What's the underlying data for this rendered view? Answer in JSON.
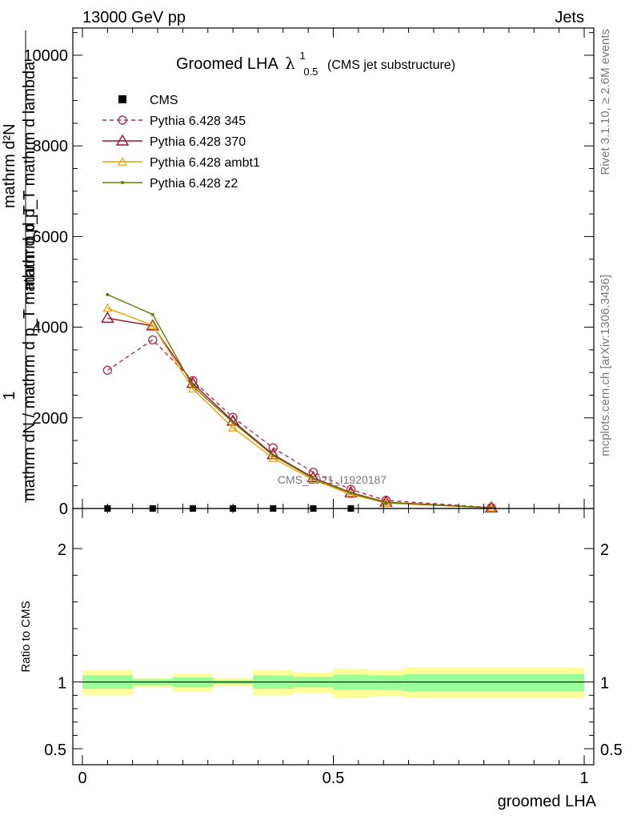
{
  "header": {
    "left": "13000 GeV pp",
    "right": "Jets"
  },
  "side": {
    "rivet": "Rivet 3.1.10, ≥ 2.6M events",
    "mcplots": "mcplots.cern.ch [arXiv:1306.3436]"
  },
  "watermark": "CMS_2021_I1920187",
  "chart_data": [
    {
      "type": "line",
      "title": {
        "main": "Groomed LHA",
        "symbol": "λ",
        "sup": "1",
        "sub": "0.5",
        "suffix": "(CMS jet substructure)"
      },
      "ylabel": {
        "numerator_top": "mathrm d²N",
        "numerator_sub": "mathrm d p_T mathrm d lambda",
        "one": "1",
        "denominator": "mathrm dN / mathrm d p_T mathrm d p_T"
      },
      "xlim": [
        0,
        1
      ],
      "ylim": [
        0,
        10600
      ],
      "yticks": [
        {
          "value": 0,
          "label": "0"
        },
        {
          "value": 2000,
          "label": "2000"
        },
        {
          "value": 4000,
          "label": "4000"
        },
        {
          "value": 6000,
          "label": "6000"
        },
        {
          "value": 8000,
          "label": "8000"
        },
        {
          "value": 10000,
          "label": "10000"
        }
      ],
      "legend_position": "top-left",
      "x": [
        0.05,
        0.14,
        0.22,
        0.3,
        0.38,
        0.46,
        0.535,
        0.605,
        0.815
      ],
      "series": [
        {
          "name": "CMS",
          "color": "#000000",
          "style": "marker-square",
          "values": [
            0,
            0,
            0,
            0,
            0,
            0,
            0,
            null,
            null
          ]
        },
        {
          "name": "Pythia 6.428 345",
          "color": "#b03050",
          "style": "dashed-circle",
          "values": [
            3050,
            3720,
            2820,
            2010,
            1340,
            800,
            420,
            180,
            20
          ]
        },
        {
          "name": "Pythia 6.428 370",
          "color": "#a0102a",
          "style": "solid-triangle",
          "values": [
            4200,
            4030,
            2760,
            1930,
            1190,
            680,
            350,
            140,
            15
          ]
        },
        {
          "name": "Pythia 6.428 ambt1",
          "color": "#f0a000",
          "style": "solid-triangle-small",
          "values": [
            4420,
            4040,
            2640,
            1780,
            1110,
            630,
            310,
            120,
            15
          ]
        },
        {
          "name": "Pythia 6.428 z2",
          "color": "#6b7a00",
          "style": "solid-dot",
          "values": [
            4720,
            4280,
            2700,
            1900,
            1170,
            660,
            340,
            130,
            15
          ]
        }
      ]
    },
    {
      "type": "area",
      "ylabel": "Ratio to CMS",
      "xlabel": "groomed LHA",
      "xlim": [
        0,
        1
      ],
      "ylim": [
        0.38,
        2.3
      ],
      "xticks": [
        {
          "value": 0,
          "label": "0"
        },
        {
          "value": 0.5,
          "label": "0.5"
        },
        {
          "value": 1,
          "label": "1"
        }
      ],
      "yticks": [
        {
          "value": 0.5,
          "label": "0.5"
        },
        {
          "value": 1,
          "label": "1"
        },
        {
          "value": 2,
          "label": "2"
        }
      ],
      "reference": 1,
      "bands": [
        {
          "x0": 0.0,
          "x1": 0.1,
          "outer": [
            0.9,
            1.09
          ],
          "inner": [
            0.95,
            1.05
          ]
        },
        {
          "x0": 0.1,
          "x1": 0.18,
          "outer": [
            0.96,
            1.03
          ],
          "inner": [
            0.975,
            1.02
          ]
        },
        {
          "x0": 0.18,
          "x1": 0.26,
          "outer": [
            0.93,
            1.06
          ],
          "inner": [
            0.96,
            1.035
          ]
        },
        {
          "x0": 0.26,
          "x1": 0.34,
          "outer": [
            0.97,
            1.03
          ],
          "inner": [
            0.985,
            1.015
          ]
        },
        {
          "x0": 0.34,
          "x1": 0.42,
          "outer": [
            0.9,
            1.09
          ],
          "inner": [
            0.95,
            1.05
          ]
        },
        {
          "x0": 0.42,
          "x1": 0.5,
          "outer": [
            0.92,
            1.07
          ],
          "inner": [
            0.96,
            1.04
          ]
        },
        {
          "x0": 0.5,
          "x1": 0.57,
          "outer": [
            0.88,
            1.1
          ],
          "inner": [
            0.94,
            1.055
          ]
        },
        {
          "x0": 0.57,
          "x1": 0.64,
          "outer": [
            0.89,
            1.09
          ],
          "inner": [
            0.94,
            1.05
          ]
        },
        {
          "x0": 0.64,
          "x1": 1.0,
          "outer": [
            0.88,
            1.11
          ],
          "inner": [
            0.93,
            1.06
          ]
        }
      ]
    }
  ],
  "colors": {
    "band_outer": "#ffff99",
    "band_inner": "#99ff99"
  }
}
